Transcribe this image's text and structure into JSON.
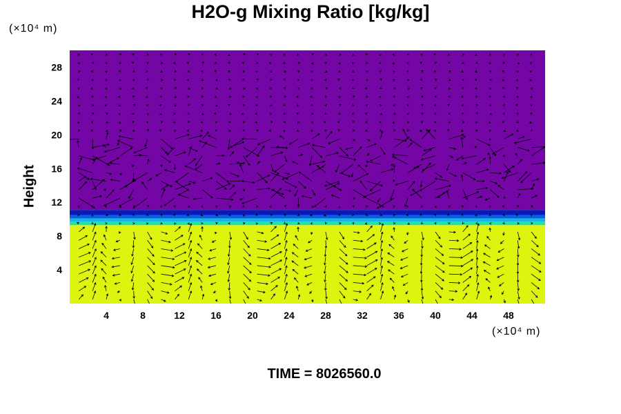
{
  "chart_data": {
    "type": "heatmap",
    "title": "H2O-g Mixing Ratio [kg/kg]",
    "ylabel": "Height",
    "xlabel": "",
    "x_unit": "(×10⁴ m)",
    "y_unit": "(×10⁴ m)",
    "xlim": [
      0,
      52
    ],
    "ylim": [
      0,
      30
    ],
    "x_ticks": [
      4,
      8,
      12,
      16,
      20,
      24,
      28,
      32,
      36,
      40,
      44,
      48
    ],
    "y_ticks": [
      4,
      8,
      12,
      16,
      20,
      24,
      28
    ],
    "field_layers": [
      {
        "y_bottom": 0,
        "y_top": 9.3,
        "color": "#ddf50e"
      },
      {
        "y_bottom": 9.3,
        "y_top": 9.7,
        "color": "#22e2a6"
      },
      {
        "y_bottom": 9.7,
        "y_top": 10.1,
        "color": "#14b6e6"
      },
      {
        "y_bottom": 10.1,
        "y_top": 10.5,
        "color": "#0a5ce0"
      },
      {
        "y_bottom": 10.5,
        "y_top": 11.1,
        "color": "#0a1ab8"
      },
      {
        "y_bottom": 11.1,
        "y_top": 30,
        "color": "#7406a5"
      }
    ],
    "grid": false,
    "overlay": "wind vectors"
  },
  "footer": {
    "time_label": "TIME = 8026560.0"
  }
}
